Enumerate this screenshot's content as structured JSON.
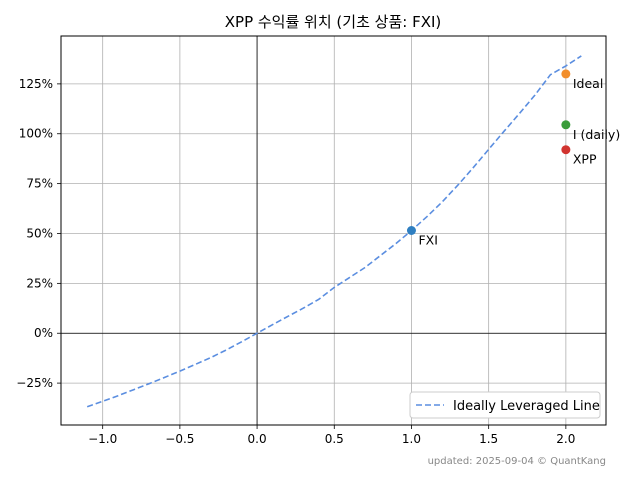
{
  "chart_data": {
    "type": "scatter",
    "title": "XPP 수익률 위치 (기초 상품: FXI)",
    "xlabel": "",
    "ylabel": "",
    "xlim": [
      -1.27,
      2.26
    ],
    "ylim": [
      -46,
      149
    ],
    "grid": true,
    "x_ticks": [
      {
        "value": -1.0,
        "label": "−1.0"
      },
      {
        "value": -0.5,
        "label": "−0.5"
      },
      {
        "value": 0.0,
        "label": "0.0"
      },
      {
        "value": 0.5,
        "label": "0.5"
      },
      {
        "value": 1.0,
        "label": "1.0"
      },
      {
        "value": 1.5,
        "label": "1.5"
      },
      {
        "value": 2.0,
        "label": "2.0"
      }
    ],
    "y_ticks": [
      {
        "value": -25,
        "label": "−25%"
      },
      {
        "value": 0,
        "label": "0%"
      },
      {
        "value": 25,
        "label": "25%"
      },
      {
        "value": 50,
        "label": "50%"
      },
      {
        "value": 75,
        "label": "75%"
      },
      {
        "value": 100,
        "label": "100%"
      },
      {
        "value": 125,
        "label": "125%"
      }
    ],
    "curve": {
      "name": "Ideally Leveraged Line",
      "color": "#5b8ee0",
      "x": [
        -1.1,
        -1.0,
        -0.9,
        -0.8,
        -0.7,
        -0.6,
        -0.5,
        -0.4,
        -0.3,
        -0.2,
        -0.1,
        0.0,
        0.1,
        0.2,
        0.3,
        0.4,
        0.5,
        0.6,
        0.7,
        0.8,
        0.9,
        1.0,
        1.1,
        1.2,
        1.3,
        1.4,
        1.5,
        1.6,
        1.7,
        1.8,
        1.9,
        2.0,
        2.1
      ],
      "y": [
        -36.9,
        -34.1,
        -31.3,
        -28.3,
        -25.3,
        -22.2,
        -19.0,
        -15.6,
        -12.2,
        -8.4,
        -4.3,
        0.0,
        4.3,
        8.5,
        12.6,
        17.0,
        23.0,
        28.0,
        33.0,
        39.0,
        45.0,
        51.5,
        58.4,
        65.9,
        74.2,
        83.0,
        92.2,
        101.3,
        110.2,
        119.4,
        129.6,
        134.0,
        139.0
      ]
    },
    "points": [
      {
        "name": "FXI",
        "x": 1.0,
        "y": 51.5,
        "color": "#2f7fc1"
      },
      {
        "name": "Ideal",
        "x": 2.0,
        "y": 130.0,
        "color": "#f28e2b"
      },
      {
        "name": "I (daily)",
        "x": 2.0,
        "y": 104.5,
        "color": "#3a9d3a"
      },
      {
        "name": "XPP",
        "x": 2.0,
        "y": 92.0,
        "color": "#d1342f"
      }
    ],
    "legend_position": "bottom-right",
    "footnote": "updated: 2025-09-04 © QuantKang"
  }
}
